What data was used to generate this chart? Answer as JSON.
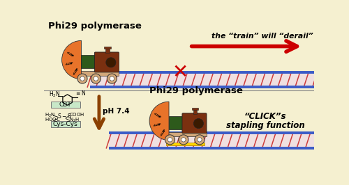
{
  "bg_color": "#f5f0d0",
  "top_label": "Phi29 polymerase",
  "bottom_label": "Phi29 polymerase",
  "arrow_text": "the “train” will “derail”",
  "ph_text": "pH 7.4",
  "click_text1": "“CLICK”s",
  "click_text2": "stapling function",
  "track_color_top": "#3a5bc7",
  "track_color_stripe": "#cc3333",
  "track_bg": "#f0e0e0",
  "train_body_color": "#7a3010",
  "train_wheel_color": "#d2a87a",
  "train_inner_color": "#2d5a1b",
  "train_orange_arc": "#e8732a",
  "cbt_box_color": "#c8e8c8",
  "cys_box_color": "#c8e8c8",
  "red_arrow_color": "#cc0000",
  "brown_arrow_color": "#8b4000",
  "cross_color": "#cc0000",
  "yellow_bar_color": "#ffd700",
  "boiler_dark": "#3a1a00"
}
